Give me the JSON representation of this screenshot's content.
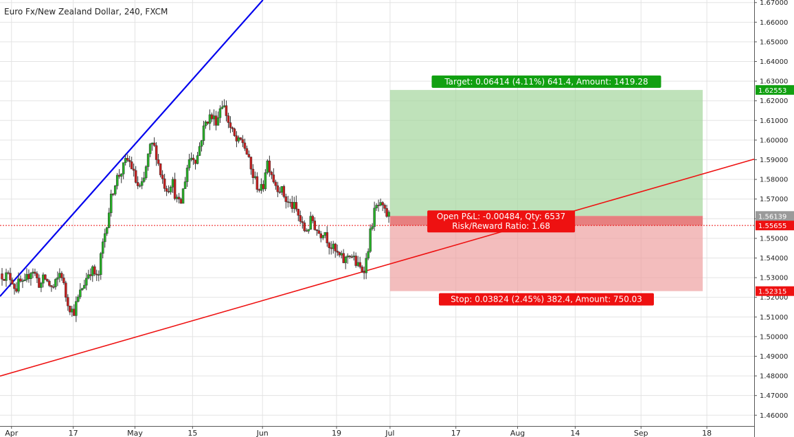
{
  "chart_data": {
    "type": "candlestick",
    "title": "Euro Fx/New Zealand Dollar, 240, FXCM",
    "x_ticks": [
      "Apr",
      "17",
      "May",
      "15",
      "Jun",
      "19",
      "Jul",
      "17",
      "Aug",
      "14",
      "Sep",
      "18"
    ],
    "x_tick_pos": [
      0,
      15,
      30,
      44,
      61,
      79,
      92,
      108,
      123,
      137,
      153,
      169
    ],
    "x_range": [
      -2.8,
      180.5
    ],
    "y_ticks": [
      "1.67000",
      "1.66000",
      "1.65000",
      "1.64000",
      "1.63000",
      "1.62000",
      "1.61000",
      "1.60000",
      "1.59000",
      "1.58000",
      "1.57000",
      "1.56000",
      "1.55000",
      "1.54000",
      "1.53000",
      "1.52000",
      "1.51000",
      "1.50000",
      "1.49000",
      "1.48000",
      "1.47000",
      "1.46000"
    ],
    "ylim": [
      1.4545,
      1.6713
    ],
    "grid": true,
    "trendlines": [
      {
        "color": "#0000ee",
        "x": [
          -2.8,
          61.1
        ],
        "y": [
          1.5205,
          1.6713
        ]
      },
      {
        "color": "#ee1111",
        "x": [
          -2.8,
          180.5
        ],
        "y": [
          1.4799,
          1.5903
        ]
      }
    ],
    "position": {
      "type": "long",
      "x_start": 92.0,
      "x_end": 168.0,
      "entry": 1.56139,
      "target": 1.62553,
      "stop": 1.52315,
      "current_price": 1.55655,
      "target_label": "Target: 0.06414 (4.11%) 641.4, Amount: 1419.28",
      "pnl_label": "Open P&L: -0.00484, Qty: 6537",
      "rr_label": "Risk/Reward Ratio: 1.68",
      "stop_label": "Stop: 0.03824 (2.45%) 382.4, Amount: 750.03"
    },
    "axis_price_labels": [
      {
        "text": "1.62553",
        "value": 1.62553,
        "color": "#11a011"
      },
      {
        "text": "1.56139",
        "value": 1.56139,
        "color": "#9a9a9a"
      },
      {
        "text": "1.55655",
        "value": 1.55655,
        "color": "#ee1111"
      },
      {
        "text": "1.52315",
        "value": 1.52315,
        "color": "#ee1111"
      }
    ],
    "price_path": [
      [
        -2.8,
        1.532
      ],
      [
        0,
        1.53
      ],
      [
        1,
        1.524
      ],
      [
        2,
        1.528
      ],
      [
        3,
        1.525
      ],
      [
        4,
        1.531
      ],
      [
        5,
        1.535
      ],
      [
        6,
        1.53
      ],
      [
        7,
        1.526
      ],
      [
        8,
        1.53
      ],
      [
        9,
        1.527
      ],
      [
        10,
        1.524
      ],
      [
        11,
        1.528
      ],
      [
        12,
        1.534
      ],
      [
        13,
        1.522
      ],
      [
        14,
        1.516
      ],
      [
        15,
        1.512
      ],
      [
        16,
        1.518
      ],
      [
        17,
        1.524
      ],
      [
        18,
        1.529
      ],
      [
        19,
        1.534
      ],
      [
        20,
        1.533
      ],
      [
        21,
        1.528
      ],
      [
        22,
        1.545
      ],
      [
        23,
        1.556
      ],
      [
        24,
        1.568
      ],
      [
        25,
        1.578
      ],
      [
        26,
        1.582
      ],
      [
        27,
        1.585
      ],
      [
        28,
        1.59
      ],
      [
        29,
        1.588
      ],
      [
        30,
        1.58
      ],
      [
        31,
        1.575
      ],
      [
        32,
        1.577
      ],
      [
        33,
        1.59
      ],
      [
        34,
        1.598
      ],
      [
        35,
        1.595
      ],
      [
        36,
        1.585
      ],
      [
        37,
        1.578
      ],
      [
        38,
        1.575
      ],
      [
        39,
        1.58
      ],
      [
        40,
        1.57
      ],
      [
        41,
        1.566
      ],
      [
        42,
        1.578
      ],
      [
        43,
        1.59
      ],
      [
        44,
        1.592
      ],
      [
        45,
        1.59
      ],
      [
        46,
        1.6
      ],
      [
        47,
        1.608
      ],
      [
        48,
        1.612
      ],
      [
        49,
        1.611
      ],
      [
        50,
        1.61
      ],
      [
        51,
        1.62
      ],
      [
        52,
        1.615
      ],
      [
        53,
        1.607
      ],
      [
        54,
        1.602
      ],
      [
        55,
        1.598
      ],
      [
        56,
        1.6
      ],
      [
        57,
        1.595
      ],
      [
        58,
        1.586
      ],
      [
        59,
        1.58
      ],
      [
        60,
        1.576
      ],
      [
        61,
        1.574
      ],
      [
        62,
        1.59
      ],
      [
        63,
        1.585
      ],
      [
        64,
        1.578
      ],
      [
        65,
        1.576
      ],
      [
        66,
        1.573
      ],
      [
        67,
        1.568
      ],
      [
        68,
        1.567
      ],
      [
        69,
        1.565
      ],
      [
        70,
        1.56
      ],
      [
        71,
        1.554
      ],
      [
        72,
        1.555
      ],
      [
        73,
        1.56
      ],
      [
        74,
        1.555
      ],
      [
        75,
        1.552
      ],
      [
        76,
        1.555
      ],
      [
        77,
        1.548
      ],
      [
        78,
        1.545
      ],
      [
        79,
        1.542
      ],
      [
        80,
        1.54
      ],
      [
        81,
        1.538
      ],
      [
        82,
        1.543
      ],
      [
        83,
        1.54
      ],
      [
        84,
        1.536
      ],
      [
        85,
        1.534
      ],
      [
        86,
        1.536
      ],
      [
        87,
        1.55
      ],
      [
        88,
        1.562
      ],
      [
        89,
        1.567
      ],
      [
        90,
        1.565
      ],
      [
        91,
        1.562
      ],
      [
        92,
        1.561
      ]
    ]
  }
}
